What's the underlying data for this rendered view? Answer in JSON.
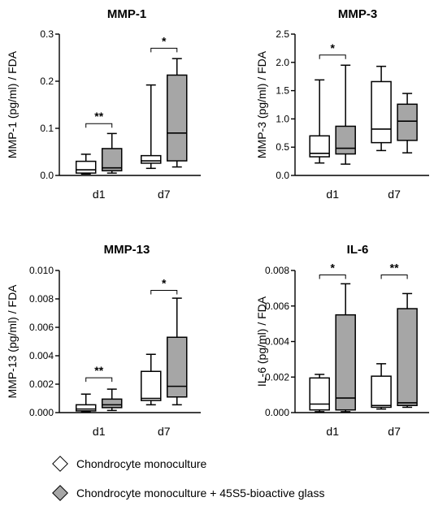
{
  "legend": {
    "items": [
      {
        "label": "Chondrocyte monoculture",
        "color": "#ffffff"
      },
      {
        "label": "Chondrocyte monoculture + 45S5-bioactive glass",
        "color": "#a6a6a6"
      }
    ]
  },
  "chart_data": [
    {
      "type": "box",
      "title": "MMP-1",
      "ylabel": "MMP-1 (pg/ml) / FDA",
      "ylim": [
        0,
        0.3
      ],
      "yticks": [
        "0.0",
        "0.1",
        "0.2",
        "0.3"
      ],
      "categories": [
        "d1",
        "d7"
      ],
      "series": [
        {
          "name": "Chondrocyte monoculture",
          "color": "#ffffff",
          "boxes": [
            {
              "min": 0.003,
              "q1": 0.005,
              "median": 0.012,
              "q3": 0.03,
              "max": 0.045
            },
            {
              "min": 0.015,
              "q1": 0.026,
              "median": 0.031,
              "q3": 0.042,
              "max": 0.192
            }
          ]
        },
        {
          "name": "Chondrocyte monoculture + 45S5-bioactive glass",
          "color": "#a6a6a6",
          "boxes": [
            {
              "min": 0.005,
              "q1": 0.01,
              "median": 0.016,
              "q3": 0.057,
              "max": 0.089
            },
            {
              "min": 0.018,
              "q1": 0.031,
              "median": 0.09,
              "q3": 0.213,
              "max": 0.248
            }
          ]
        }
      ],
      "significance": [
        {
          "category": 0,
          "label": "**",
          "y": 0.11
        },
        {
          "category": 1,
          "label": "*",
          "y": 0.27
        }
      ]
    },
    {
      "type": "box",
      "title": "MMP-3",
      "ylabel": "MMP-3 (pg/ml) / FDA",
      "ylim": [
        0,
        2.5
      ],
      "yticks": [
        "0.0",
        "0.5",
        "1.0",
        "1.5",
        "2.0",
        "2.5"
      ],
      "categories": [
        "d1",
        "d7"
      ],
      "series": [
        {
          "name": "Chondrocyte monoculture",
          "color": "#ffffff",
          "boxes": [
            {
              "min": 0.22,
              "q1": 0.33,
              "median": 0.39,
              "q3": 0.7,
              "max": 1.69
            },
            {
              "min": 0.44,
              "q1": 0.58,
              "median": 0.82,
              "q3": 1.66,
              "max": 1.93
            }
          ]
        },
        {
          "name": "Chondrocyte monoculture + 45S5-bioactive glass",
          "color": "#a6a6a6",
          "boxes": [
            {
              "min": 0.2,
              "q1": 0.38,
              "median": 0.48,
              "q3": 0.87,
              "max": 1.95
            },
            {
              "min": 0.4,
              "q1": 0.62,
              "median": 0.96,
              "q3": 1.26,
              "max": 1.45
            }
          ]
        }
      ],
      "significance": [
        {
          "category": 0,
          "label": "*",
          "y": 2.13
        }
      ]
    },
    {
      "type": "box",
      "title": "MMP-13",
      "ylabel": "MMP-13 (pg/ml) / FDA",
      "ylim": [
        0,
        0.01
      ],
      "yticks": [
        "0.000",
        "0.002",
        "0.004",
        "0.006",
        "0.008",
        "0.010"
      ],
      "categories": [
        "d1",
        "d7"
      ],
      "series": [
        {
          "name": "Chondrocyte monoculture",
          "color": "#ffffff",
          "boxes": [
            {
              "min": 5e-05,
              "q1": 0.00012,
              "median": 0.00025,
              "q3": 0.00055,
              "max": 0.0013
            },
            {
              "min": 0.00055,
              "q1": 0.00085,
              "median": 0.001,
              "q3": 0.0029,
              "max": 0.0041
            }
          ]
        },
        {
          "name": "Chondrocyte monoculture + 45S5-bioactive glass",
          "color": "#a6a6a6",
          "boxes": [
            {
              "min": 0.00015,
              "q1": 0.00035,
              "median": 0.00055,
              "q3": 0.00095,
              "max": 0.00165
            },
            {
              "min": 0.00055,
              "q1": 0.0011,
              "median": 0.00185,
              "q3": 0.0053,
              "max": 0.00805
            }
          ]
        }
      ],
      "significance": [
        {
          "category": 0,
          "label": "**",
          "y": 0.00245
        },
        {
          "category": 1,
          "label": "*",
          "y": 0.0086
        }
      ]
    },
    {
      "type": "box",
      "title": "IL-6",
      "ylabel": "IL-6 (pg/ml) / FDA",
      "ylim": [
        0,
        0.008
      ],
      "yticks": [
        "0.000",
        "0.002",
        "0.004",
        "0.006",
        "0.008"
      ],
      "categories": [
        "d1",
        "d7"
      ],
      "series": [
        {
          "name": "Chondrocyte monoculture",
          "color": "#ffffff",
          "boxes": [
            {
              "min": 5e-05,
              "q1": 0.00015,
              "median": 0.00048,
              "q3": 0.00195,
              "max": 0.00215
            },
            {
              "min": 0.0002,
              "q1": 0.0003,
              "median": 0.0004,
              "q3": 0.00205,
              "max": 0.00275
            }
          ]
        },
        {
          "name": "Chondrocyte monoculture + 45S5-bioactive glass",
          "color": "#a6a6a6",
          "boxes": [
            {
              "min": 5e-05,
              "q1": 0.00015,
              "median": 0.00082,
              "q3": 0.0055,
              "max": 0.00725
            },
            {
              "min": 0.0003,
              "q1": 0.0004,
              "median": 0.00055,
              "q3": 0.00585,
              "max": 0.0067
            }
          ]
        }
      ],
      "significance": [
        {
          "category": 0,
          "label": "*",
          "y": 0.00775
        },
        {
          "category": 1,
          "label": "**",
          "y": 0.00775
        }
      ]
    }
  ]
}
